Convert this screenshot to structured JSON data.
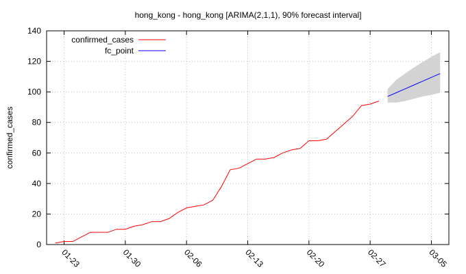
{
  "chart_data": {
    "type": "line",
    "title": "hong_kong - hong_kong [ARIMA(2,1,1), 90% forecast interval]",
    "y_label": "confirmed_cases",
    "series": [
      {
        "name": "confirmed_cases",
        "color": "#ff0000",
        "x": [
          "01-22",
          "01-23",
          "01-24",
          "01-25",
          "01-26",
          "01-27",
          "01-28",
          "01-29",
          "01-30",
          "01-31",
          "02-01",
          "02-02",
          "02-03",
          "02-04",
          "02-05",
          "02-06",
          "02-07",
          "02-08",
          "02-09",
          "02-10",
          "02-11",
          "02-12",
          "02-13",
          "02-14",
          "02-15",
          "02-16",
          "02-17",
          "02-18",
          "02-19",
          "02-20",
          "02-21",
          "02-22",
          "02-23",
          "02-24",
          "02-25",
          "02-26",
          "02-27",
          "02-28"
        ],
        "values": [
          1,
          2,
          2,
          5,
          8,
          8,
          8,
          10,
          10,
          12,
          13,
          15,
          15,
          17,
          21,
          24,
          25,
          26,
          29,
          38,
          49,
          50,
          53,
          56,
          56,
          57,
          60,
          62,
          63,
          68,
          68,
          69,
          74,
          79,
          84,
          91,
          92,
          94
        ]
      },
      {
        "name": "fc_point",
        "color": "#0000ff",
        "x": [
          "02-29",
          "03-01",
          "03-02",
          "03-03",
          "03-04",
          "03-05",
          "03-06"
        ],
        "values": [
          97,
          99.5,
          102,
          104.5,
          107,
          109.5,
          112
        ]
      }
    ],
    "interval": {
      "color": "#d3d3d3",
      "x": [
        "02-29",
        "03-01",
        "03-02",
        "03-03",
        "03-04",
        "03-05",
        "03-06"
      ],
      "lower": [
        93,
        93,
        94,
        95.5,
        97,
        98,
        99.5
      ],
      "upper": [
        102,
        108,
        112,
        116,
        119.5,
        123,
        126
      ]
    },
    "xlim": [
      "01-21",
      "03-07"
    ],
    "xticks": [
      "01-23",
      "01-30",
      "02-06",
      "02-13",
      "02-20",
      "02-27",
      "03-05"
    ],
    "ylim": [
      0,
      140
    ],
    "yticks": [
      0,
      20,
      40,
      60,
      80,
      100,
      120,
      140
    ],
    "grid": true,
    "legend": "top-left"
  }
}
